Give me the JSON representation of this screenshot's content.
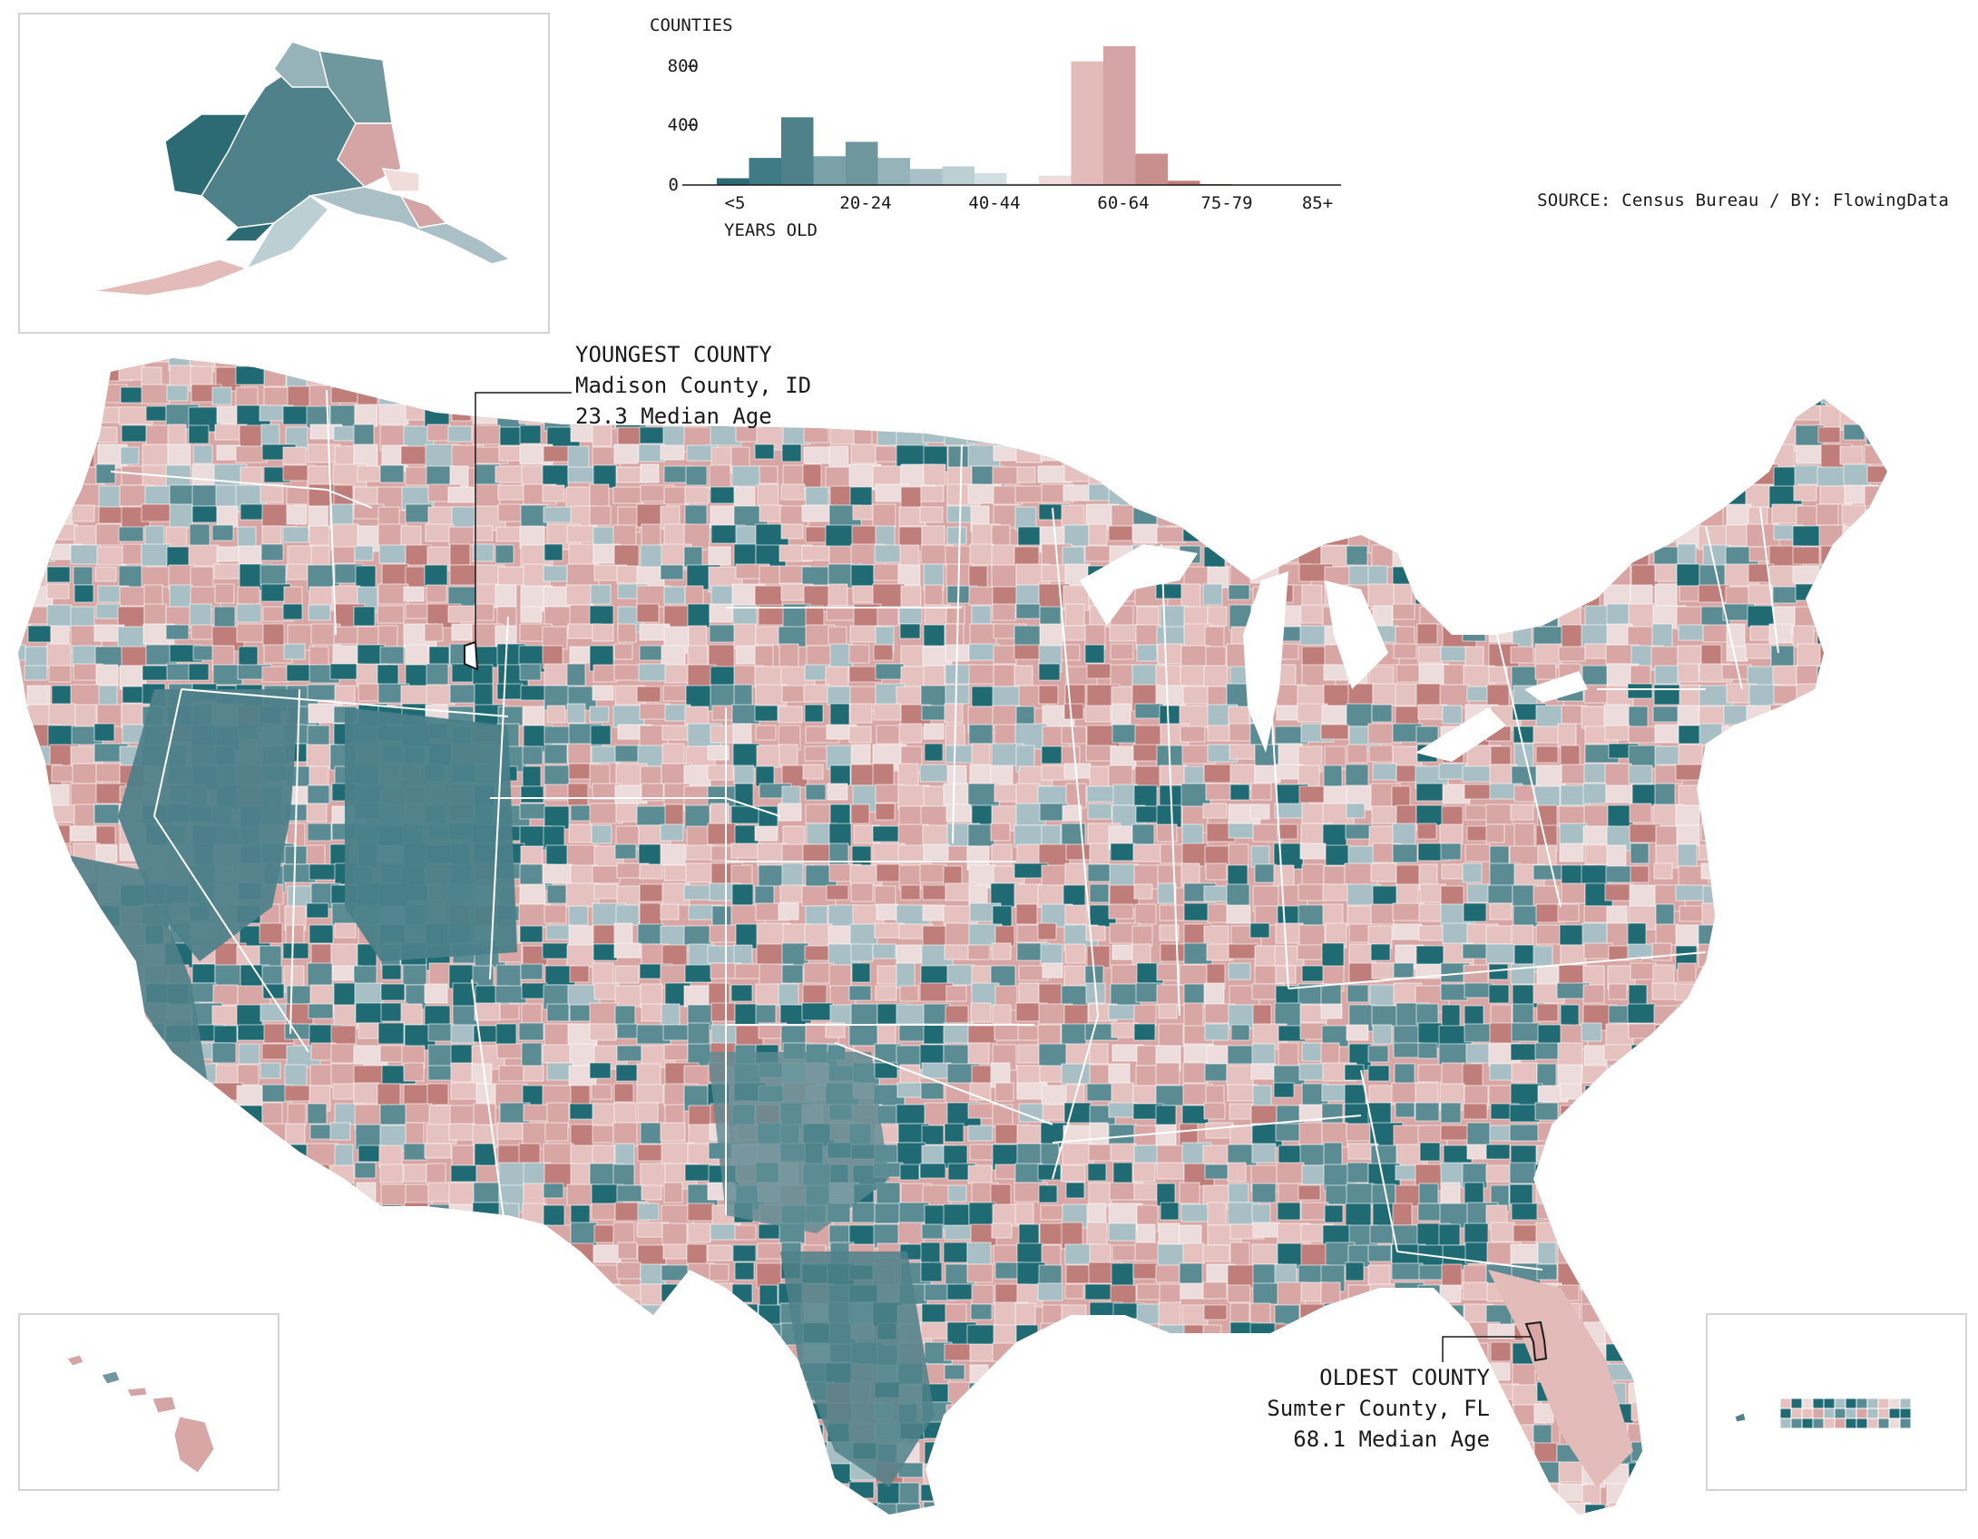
{
  "chart_data": {
    "type": "bar",
    "title": "COUNTIES",
    "xlabel": "YEARS OLD",
    "ylabel": "COUNTIES",
    "ylim": [
      0,
      900
    ],
    "y_ticks": [
      "0",
      "400",
      "800"
    ],
    "x_tick_labels": [
      "<5",
      "20-24",
      "40-44",
      "60-64",
      "75-79",
      "85+"
    ],
    "bins": [
      {
        "value": 40,
        "color": "#2c6b73"
      },
      {
        "value": 160,
        "color": "#3f7b84"
      },
      {
        "value": 400,
        "color": "#4f818a"
      },
      {
        "value": 170,
        "color": "#7aa0a8"
      },
      {
        "value": 255,
        "color": "#6e979e"
      },
      {
        "value": 160,
        "color": "#95b3b8"
      },
      {
        "value": 95,
        "color": "#a9c1c6"
      },
      {
        "value": 110,
        "color": "#bccfd3"
      },
      {
        "value": 70,
        "color": "#d1dfe2"
      },
      {
        "value": 10,
        "color": "#e6eff0"
      },
      {
        "value": 55,
        "color": "#f0dcdb"
      },
      {
        "value": 730,
        "color": "#e3bcba"
      },
      {
        "value": 820,
        "color": "#d4a5a4"
      },
      {
        "value": 185,
        "color": "#c98f8d"
      },
      {
        "value": 25,
        "color": "#c27d7a"
      },
      {
        "value": 5,
        "color": "#b86a66"
      }
    ]
  },
  "source": "SOURCE: Census Bureau / BY: FlowingData",
  "callouts": {
    "youngest": {
      "label": "YOUNGEST COUNTY",
      "county": "Madison County, ID",
      "value": "23.3 Median Age"
    },
    "oldest": {
      "label": "OLDEST COUNTY",
      "county": "Sumter County, FL",
      "value": "68.1 Median Age"
    }
  },
  "colors": {
    "young_dark": "#1f6a73",
    "young_mid": "#5b8b93",
    "young_light": "#a8c0c5",
    "neutral": "#ecdcdc",
    "old_light": "#e5c2c0",
    "old_mid": "#d8a7a5",
    "old_dark": "#c07e7b",
    "border": "#ffffff"
  },
  "legend_scale": "median age"
}
